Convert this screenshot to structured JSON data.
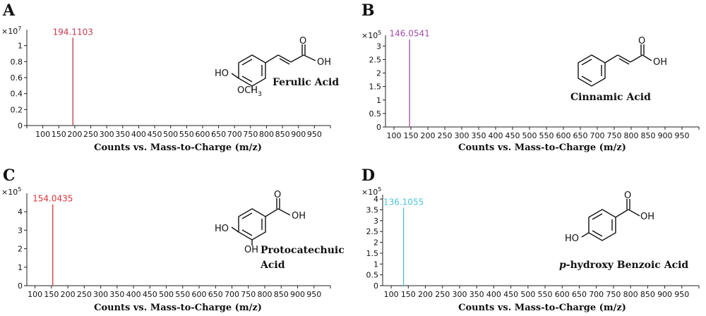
{
  "chart_data": [
    {
      "type": "bar",
      "panel_letter": "A",
      "xlabel": "Counts vs. Mass-to-Charge (m/z)",
      "multiplier": {
        "base": "×10",
        "exp": "7"
      },
      "xlim": [
        50,
        1000
      ],
      "xticks": [
        100,
        150,
        200,
        250,
        300,
        350,
        400,
        450,
        500,
        550,
        600,
        650,
        700,
        750,
        800,
        850,
        900,
        950
      ],
      "ylim": [
        0,
        1.2
      ],
      "yticks": [
        0,
        0.2,
        0.4,
        0.6,
        0.8,
        1
      ],
      "peaks": [
        {
          "x": 194.1103,
          "y": 1.1,
          "label": "194.1103"
        }
      ],
      "color": "#c0394b",
      "compound": "Ferulic Acid",
      "structure": {
        "oh": "OH",
        "o": "O",
        "ho": "HO",
        "och3": "OCH",
        "och3_sub": "3"
      }
    },
    {
      "type": "bar",
      "panel_letter": "B",
      "xlabel": "Counts vs. Mass-to-Charge (m/z)",
      "multiplier": {
        "base": "×10",
        "exp": "5"
      },
      "xlim": [
        50,
        1000
      ],
      "xticks": [
        100,
        150,
        200,
        250,
        300,
        350,
        400,
        450,
        500,
        550,
        600,
        650,
        700,
        750,
        800,
        850,
        900,
        950
      ],
      "ylim": [
        0,
        3.4
      ],
      "yticks": [
        0,
        0.5,
        1,
        1.5,
        2,
        2.5,
        3
      ],
      "peaks": [
        {
          "x": 146.0541,
          "y": 3.25,
          "label": "146.0541"
        }
      ],
      "color": "#a34aa8",
      "compound": "Cinnamic Acid",
      "structure": {
        "oh": "OH",
        "o": "O"
      }
    },
    {
      "type": "bar",
      "panel_letter": "C",
      "xlabel": "Counts vs. Mass-to-Charge (m/z)",
      "multiplier": {
        "base": "×10",
        "exp": "5"
      },
      "xlim": [
        50,
        1000
      ],
      "xticks": [
        100,
        150,
        200,
        250,
        300,
        350,
        400,
        450,
        500,
        550,
        600,
        650,
        700,
        750,
        800,
        850,
        900,
        950
      ],
      "ylim": [
        0,
        5
      ],
      "yticks": [
        0,
        1,
        2,
        3,
        4
      ],
      "peaks": [
        {
          "x": 154.0435,
          "y": 4.4,
          "label": "154.0435"
        }
      ],
      "color": "#d9343a",
      "compound": "Protocatechuic",
      "compound_line2": "Acid",
      "structure": {
        "oh": "OH",
        "o": "O",
        "ho": "HO",
        "oh2": "OH"
      }
    },
    {
      "type": "bar",
      "panel_letter": "D",
      "xlabel": "Counts vs. Mass-to-Charge (m/z)",
      "multiplier": {
        "base": "×10",
        "exp": "5"
      },
      "xlim": [
        50,
        1000
      ],
      "xticks": [
        100,
        150,
        200,
        250,
        300,
        350,
        400,
        450,
        500,
        550,
        600,
        650,
        700,
        750,
        800,
        850,
        900,
        950
      ],
      "ylim": [
        0,
        4.2
      ],
      "yticks": [
        0,
        0.5,
        1,
        1.5,
        2,
        2.5,
        3,
        3.5,
        4
      ],
      "peaks": [
        {
          "x": 136.1055,
          "y": 3.6,
          "label": "136.1055"
        }
      ],
      "color": "#4ec3dd",
      "compound_italic": "p",
      "compound": "-hydroxy Benzoic Acid",
      "structure": {
        "oh": "OH",
        "o": "O",
        "ho": "HO"
      }
    }
  ]
}
